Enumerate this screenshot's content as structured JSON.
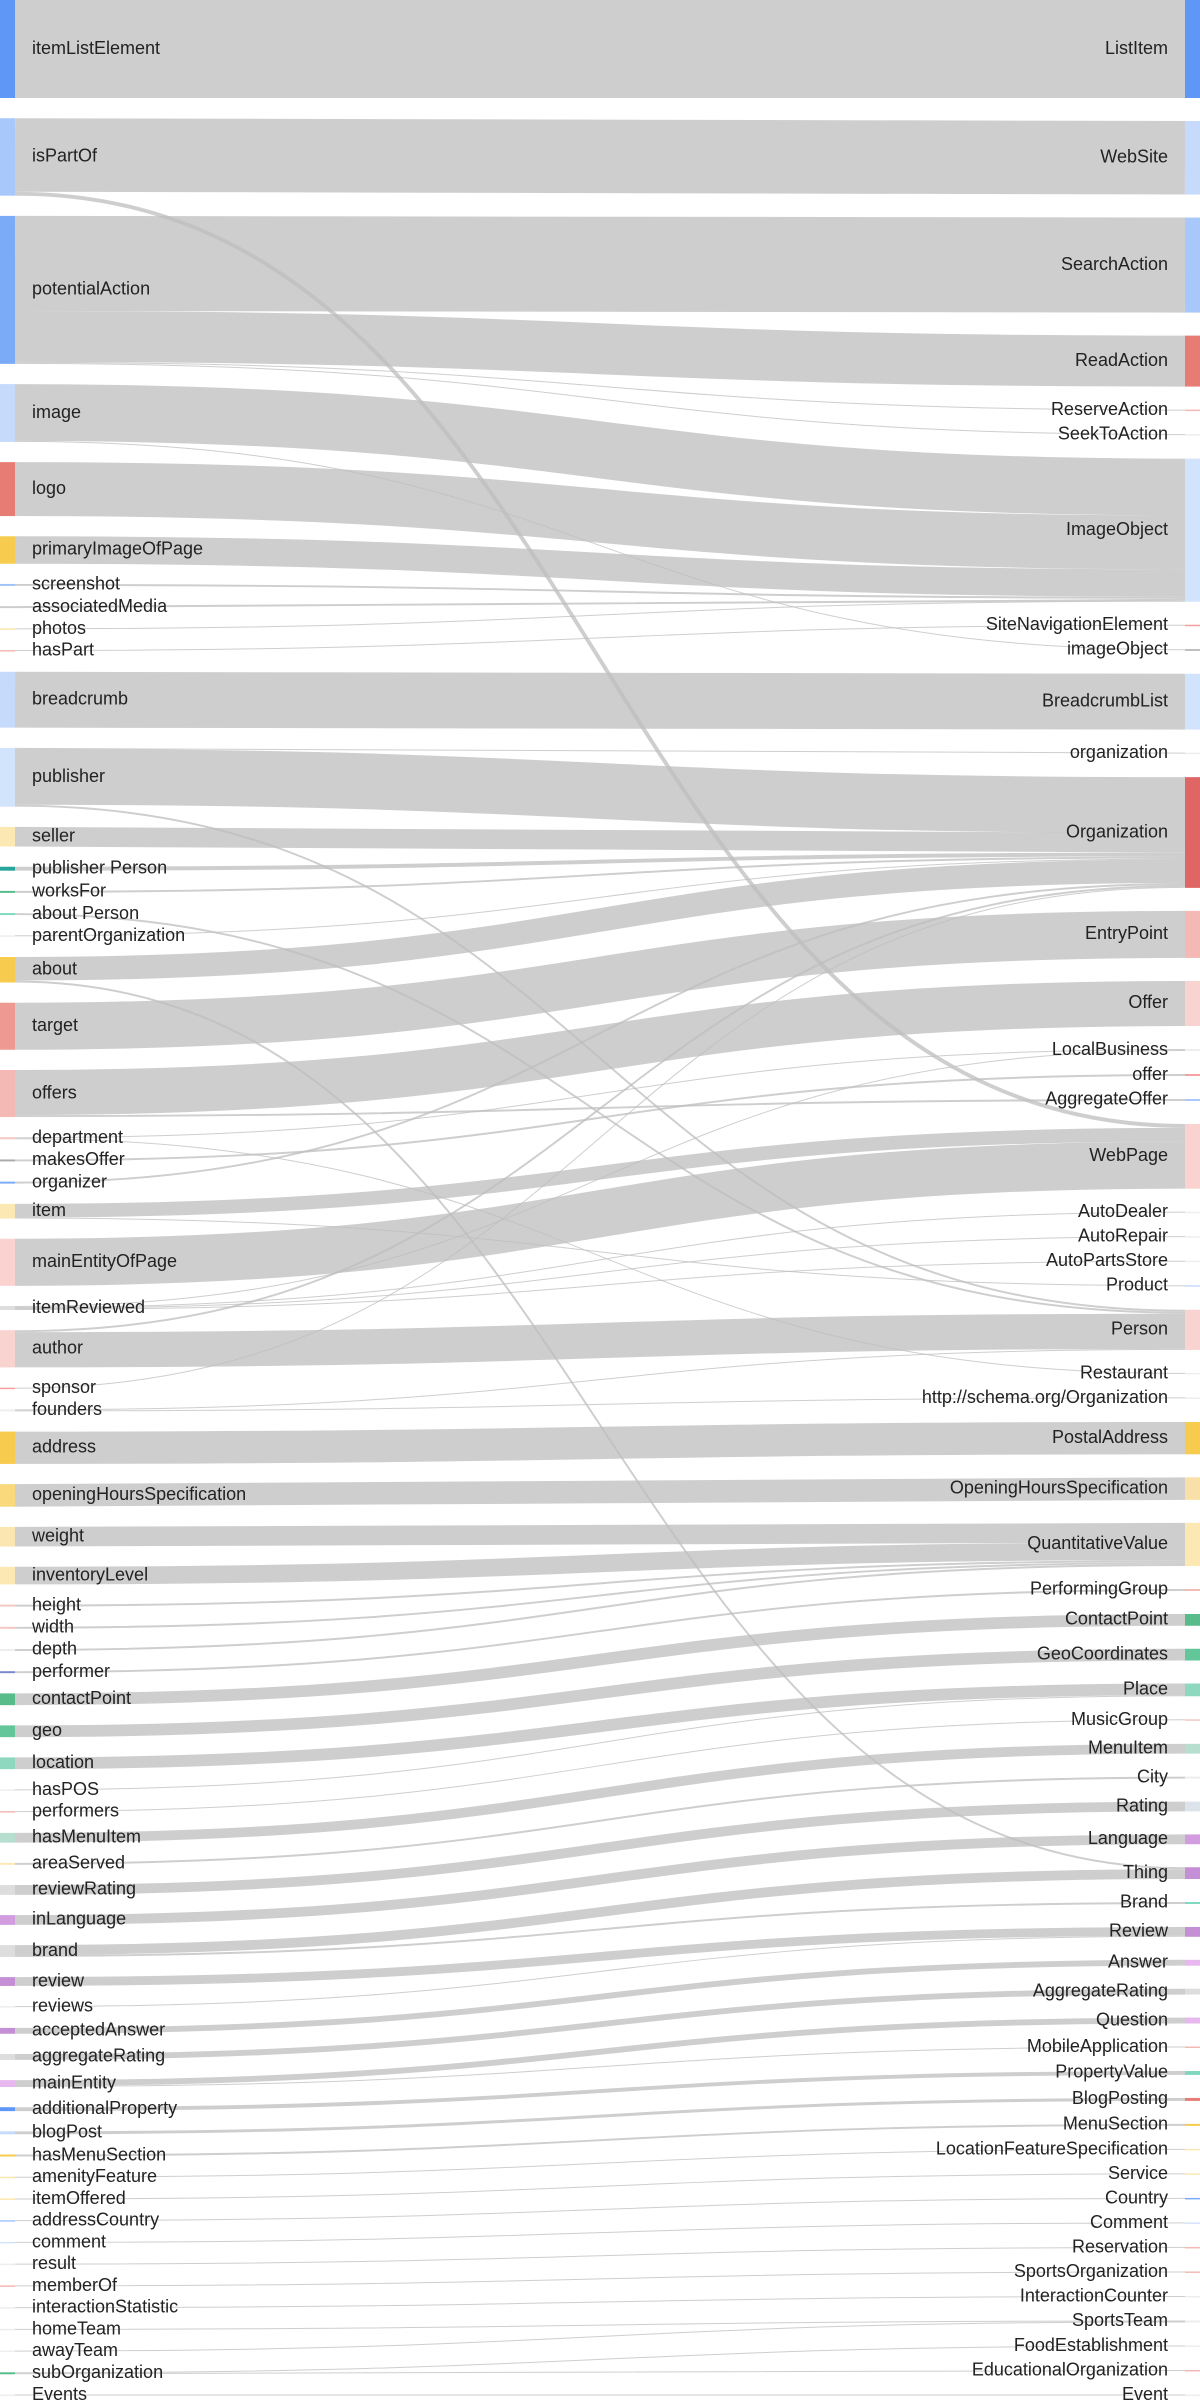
{
  "chart_data": {
    "type": "sankey",
    "link_color": "#c8c8c8",
    "left_nodes": [
      {
        "name": "itemListElement",
        "color": "#5e97f6"
      },
      {
        "name": "isPartOf",
        "color": "#a8c7fa"
      },
      {
        "name": "potentialAction",
        "color": "#7baaf7"
      },
      {
        "name": "image",
        "color": "#c6dafc"
      },
      {
        "name": "logo",
        "color": "#e67c73"
      },
      {
        "name": "primaryImageOfPage",
        "color": "#f7cb4d"
      },
      {
        "name": "screenshot",
        "color": "#9fc3f7"
      },
      {
        "name": "associatedMedia",
        "color": "#cccccc"
      },
      {
        "name": "photos",
        "color": "#fbe5b0"
      },
      {
        "name": "hasPart",
        "color": "#f4b9b4"
      },
      {
        "name": "breadcrumb",
        "color": "#c6dafc"
      },
      {
        "name": "publisher",
        "color": "#d2e3fc"
      },
      {
        "name": "seller",
        "color": "#fce8b2"
      },
      {
        "name": "publisher Person",
        "color": "#26a69a"
      },
      {
        "name": "worksFor",
        "color": "#57bb8a"
      },
      {
        "name": "about Person",
        "color": "#7fd8be"
      },
      {
        "name": "parentOrganization",
        "color": "#eeeeee"
      },
      {
        "name": "about",
        "color": "#f7cb4d"
      },
      {
        "name": "target",
        "color": "#ee9a93"
      },
      {
        "name": "offers",
        "color": "#f4b9b4"
      },
      {
        "name": "department",
        "color": "#f4c7c3"
      },
      {
        "name": "makesOffer",
        "color": "#aaaaaa"
      },
      {
        "name": "organizer",
        "color": "#7baaf7"
      },
      {
        "name": "item",
        "color": "#fce8b2"
      },
      {
        "name": "mainEntityOfPage",
        "color": "#fad2cf"
      },
      {
        "name": "itemReviewed",
        "color": "#dddddd"
      },
      {
        "name": "author",
        "color": "#f8d3d0"
      },
      {
        "name": "sponsor",
        "color": "#f4a0a0"
      },
      {
        "name": "founders",
        "color": "#eeeeee"
      },
      {
        "name": "address",
        "color": "#f7cb4d"
      },
      {
        "name": "openingHoursSpecification",
        "color": "#f9d97b"
      },
      {
        "name": "weight",
        "color": "#fbe5b0"
      },
      {
        "name": "inventoryLevel",
        "color": "#fce8b2"
      },
      {
        "name": "height",
        "color": "#f4c7c3"
      },
      {
        "name": "width",
        "color": "#f4c7c3"
      },
      {
        "name": "depth",
        "color": "#eeeeee"
      },
      {
        "name": "performer",
        "color": "#7986cb"
      },
      {
        "name": "contactPoint",
        "color": "#57bb8a"
      },
      {
        "name": "geo",
        "color": "#63c59a"
      },
      {
        "name": "location",
        "color": "#8ed8c0"
      },
      {
        "name": "hasPOS",
        "color": "#eeeeee"
      },
      {
        "name": "performers",
        "color": "#f4b9b4"
      },
      {
        "name": "hasMenuItem",
        "color": "#b7dfcf"
      },
      {
        "name": "areaServed",
        "color": "#fce8b2"
      },
      {
        "name": "reviewRating",
        "color": "#dddddd"
      },
      {
        "name": "inLanguage",
        "color": "#d29ddf"
      },
      {
        "name": "brand",
        "color": "#dddddd"
      },
      {
        "name": "review",
        "color": "#c58fd6"
      },
      {
        "name": "reviews",
        "color": "#eeeeee"
      },
      {
        "name": "acceptedAnswer",
        "color": "#c58fd6"
      },
      {
        "name": "aggregateRating",
        "color": "#dddddd"
      },
      {
        "name": "mainEntity",
        "color": "#e6b8ee"
      },
      {
        "name": "additionalProperty",
        "color": "#5e97f6"
      },
      {
        "name": "blogPost",
        "color": "#c6dafc"
      },
      {
        "name": "hasMenuSection",
        "color": "#f7cb4d"
      },
      {
        "name": "amenityFeature",
        "color": "#fbe5b0"
      },
      {
        "name": "itemOffered",
        "color": "#fce8b2"
      },
      {
        "name": "addressCountry",
        "color": "#a8c7fa"
      },
      {
        "name": "comment",
        "color": "#d2e3fc"
      },
      {
        "name": "result",
        "color": "#eeeeee"
      },
      {
        "name": "memberOf",
        "color": "#f4b9b4"
      },
      {
        "name": "interactionStatistic",
        "color": "#eeeeee"
      },
      {
        "name": "homeTeam",
        "color": "#eeeeee"
      },
      {
        "name": "awayTeam",
        "color": "#eeeeee"
      },
      {
        "name": "subOrganization",
        "color": "#57bb8a"
      },
      {
        "name": "Events",
        "color": "#eeeeee"
      }
    ],
    "right_nodes": [
      {
        "name": "ListItem",
        "color": "#5e97f6"
      },
      {
        "name": "WebSite",
        "color": "#c6dafc"
      },
      {
        "name": "SearchAction",
        "color": "#a8c7fa"
      },
      {
        "name": "ReadAction",
        "color": "#e67c73"
      },
      {
        "name": "ReserveAction",
        "color": "#f4b9b4"
      },
      {
        "name": "SeekToAction",
        "color": "#eeeeee"
      },
      {
        "name": "ImageObject",
        "color": "#d2e3fc"
      },
      {
        "name": "SiteNavigationElement",
        "color": "#f4a0a0"
      },
      {
        "name": "imageObject",
        "color": "#aaaaaa"
      },
      {
        "name": "BreadcrumbList",
        "color": "#d2e3fc"
      },
      {
        "name": "organization",
        "color": "#eeeeee"
      },
      {
        "name": "Organization",
        "color": "#e06666"
      },
      {
        "name": "EntryPoint",
        "color": "#f4b9b4"
      },
      {
        "name": "Offer",
        "color": "#f8d3d0"
      },
      {
        "name": "LocalBusiness",
        "color": "#eeeeee"
      },
      {
        "name": "offer",
        "color": "#f4a0a0"
      },
      {
        "name": "AggregateOffer",
        "color": "#a8c7fa"
      },
      {
        "name": "WebPage",
        "color": "#fad2cf"
      },
      {
        "name": "AutoDealer",
        "color": "#eeeeee"
      },
      {
        "name": "AutoRepair",
        "color": "#eeeeee"
      },
      {
        "name": "AutoPartsStore",
        "color": "#eeeeee"
      },
      {
        "name": "Product",
        "color": "#c6dafc"
      },
      {
        "name": "Person",
        "color": "#f8d3d0"
      },
      {
        "name": "Restaurant",
        "color": "#eeeeee"
      },
      {
        "name": "http://schema.org/Organization",
        "color": "#eeeeee"
      },
      {
        "name": "PostalAddress",
        "color": "#f7cb4d"
      },
      {
        "name": "OpeningHoursSpecification",
        "color": "#f9e0a8"
      },
      {
        "name": "QuantitativeValue",
        "color": "#fce8b2"
      },
      {
        "name": "PerformingGroup",
        "color": "#f4b9b4"
      },
      {
        "name": "ContactPoint",
        "color": "#57bb8a"
      },
      {
        "name": "GeoCoordinates",
        "color": "#63c59a"
      },
      {
        "name": "Place",
        "color": "#8ed8c0"
      },
      {
        "name": "MusicGroup",
        "color": "#f4c7c3"
      },
      {
        "name": "MenuItem",
        "color": "#b7dfcf"
      },
      {
        "name": "City",
        "color": "#eeeeee"
      },
      {
        "name": "Rating",
        "color": "#dde3ea"
      },
      {
        "name": "Language",
        "color": "#d29ddf"
      },
      {
        "name": "Thing",
        "color": "#c58fd6"
      },
      {
        "name": "Brand",
        "color": "#7fd8be"
      },
      {
        "name": "Review",
        "color": "#c58fd6"
      },
      {
        "name": "Answer",
        "color": "#e6b8ee"
      },
      {
        "name": "AggregateRating",
        "color": "#dddddd"
      },
      {
        "name": "Question",
        "color": "#e6b8ee"
      },
      {
        "name": "MobileApplication",
        "color": "#f4b9b4"
      },
      {
        "name": "PropertyValue",
        "color": "#7fd8be"
      },
      {
        "name": "BlogPosting",
        "color": "#e67c73"
      },
      {
        "name": "MenuSection",
        "color": "#f7cb4d"
      },
      {
        "name": "LocationFeatureSpecification",
        "color": "#fce8b2"
      },
      {
        "name": "Service",
        "color": "#fce8b2"
      },
      {
        "name": "Country",
        "color": "#7baaf7"
      },
      {
        "name": "Comment",
        "color": "#d2e3fc"
      },
      {
        "name": "Reservation",
        "color": "#f4b9b4"
      },
      {
        "name": "SportsOrganization",
        "color": "#f4b9b4"
      },
      {
        "name": "InteractionCounter",
        "color": "#eeeeee"
      },
      {
        "name": "SportsTeam",
        "color": "#eeeeee"
      },
      {
        "name": "FoodEstablishment",
        "color": "#eeeeee"
      },
      {
        "name": "EducationalOrganization",
        "color": "#f4b9b4"
      },
      {
        "name": "Event",
        "color": "#eeeeee"
      }
    ],
    "links": [
      [
        "itemListElement",
        "ListItem",
        100
      ],
      [
        "isPartOf",
        "WebSite",
        75
      ],
      [
        "isPartOf",
        "WebPage",
        4
      ],
      [
        "potentialAction",
        "SearchAction",
        97
      ],
      [
        "potentialAction",
        "ReadAction",
        52
      ],
      [
        "potentialAction",
        "ReserveAction",
        1
      ],
      [
        "potentialAction",
        "SeekToAction",
        1
      ],
      [
        "image",
        "ImageObject",
        58
      ],
      [
        "image",
        "imageObject",
        1
      ],
      [
        "logo",
        "ImageObject",
        55
      ],
      [
        "primaryImageOfPage",
        "ImageObject",
        28
      ],
      [
        "screenshot",
        "ImageObject",
        2
      ],
      [
        "associatedMedia",
        "ImageObject",
        2
      ],
      [
        "photos",
        "ImageObject",
        1
      ],
      [
        "hasPart",
        "SiteNavigationElement",
        1
      ],
      [
        "breadcrumb",
        "BreadcrumbList",
        57
      ],
      [
        "publisher",
        "organization",
        1
      ],
      [
        "publisher",
        "Organization",
        57
      ],
      [
        "publisher",
        "Person",
        2
      ],
      [
        "seller",
        "Organization",
        20
      ],
      [
        "publisher Person",
        "Organization",
        4
      ],
      [
        "worksFor",
        "Organization",
        2
      ],
      [
        "about Person",
        "Person",
        2
      ],
      [
        "parentOrganization",
        "Organization",
        1
      ],
      [
        "about",
        "Organization",
        24
      ],
      [
        "about",
        "Thing",
        2
      ],
      [
        "target",
        "EntryPoint",
        48
      ],
      [
        "offers",
        "Offer",
        46
      ],
      [
        "offers",
        "AggregateOffer",
        2
      ],
      [
        "department",
        "LocalBusiness",
        1
      ],
      [
        "department",
        "Restaurant",
        1
      ],
      [
        "makesOffer",
        "offer",
        2
      ],
      [
        "organizer",
        "Organization",
        2
      ],
      [
        "item",
        "WebPage",
        14
      ],
      [
        "item",
        "Product",
        1
      ],
      [
        "mainEntityOfPage",
        "WebPage",
        48
      ],
      [
        "itemReviewed",
        "LocalBusiness",
        1
      ],
      [
        "itemReviewed",
        "AutoDealer",
        1
      ],
      [
        "itemReviewed",
        "AutoRepair",
        1
      ],
      [
        "itemReviewed",
        "AutoPartsStore",
        1
      ],
      [
        "author",
        "Organization",
        2
      ],
      [
        "author",
        "Person",
        36
      ],
      [
        "sponsor",
        "Organization",
        1
      ],
      [
        "founders",
        "Person",
        1
      ],
      [
        "founders",
        "http://schema.org/Organization",
        1
      ],
      [
        "address",
        "PostalAddress",
        33
      ],
      [
        "openingHoursSpecification",
        "OpeningHoursSpecification",
        23
      ],
      [
        "weight",
        "QuantitativeValue",
        20
      ],
      [
        "inventoryLevel",
        "QuantitativeValue",
        18
      ],
      [
        "height",
        "QuantitativeValue",
        2
      ],
      [
        "width",
        "QuantitativeValue",
        2
      ],
      [
        "depth",
        "QuantitativeValue",
        2
      ],
      [
        "performer",
        "PerformingGroup",
        2
      ],
      [
        "contactPoint",
        "ContactPoint",
        12
      ],
      [
        "geo",
        "GeoCoordinates",
        12
      ],
      [
        "location",
        "Place",
        12
      ],
      [
        "hasPOS",
        "Place",
        1
      ],
      [
        "performers",
        "MusicGroup",
        1
      ],
      [
        "hasMenuItem",
        "MenuItem",
        10
      ],
      [
        "areaServed",
        "City",
        2
      ],
      [
        "reviewRating",
        "Rating",
        10
      ],
      [
        "inLanguage",
        "Language",
        10
      ],
      [
        "brand",
        "Thing",
        10
      ],
      [
        "brand",
        "Brand",
        2
      ],
      [
        "review",
        "Review",
        9
      ],
      [
        "reviews",
        "Review",
        1
      ],
      [
        "acceptedAnswer",
        "Answer",
        6
      ],
      [
        "aggregateRating",
        "AggregateRating",
        6
      ],
      [
        "mainEntity",
        "Question",
        6
      ],
      [
        "mainEntity",
        "MobileApplication",
        1
      ],
      [
        "additionalProperty",
        "PropertyValue",
        4
      ],
      [
        "blogPost",
        "BlogPosting",
        3
      ],
      [
        "hasMenuSection",
        "MenuSection",
        2
      ],
      [
        "amenityFeature",
        "LocationFeatureSpecification",
        1
      ],
      [
        "itemOffered",
        "Service",
        1
      ],
      [
        "addressCountry",
        "Country",
        1
      ],
      [
        "comment",
        "Comment",
        1
      ],
      [
        "result",
        "Reservation",
        1
      ],
      [
        "memberOf",
        "SportsOrganization",
        1
      ],
      [
        "interactionStatistic",
        "InteractionCounter",
        1
      ],
      [
        "homeTeam",
        "SportsTeam",
        1
      ],
      [
        "awayTeam",
        "SportsTeam",
        1
      ],
      [
        "subOrganization",
        "FoodEstablishment",
        1
      ],
      [
        "subOrganization",
        "EducationalOrganization",
        1
      ],
      [
        "Events",
        "Event",
        1
      ]
    ]
  }
}
